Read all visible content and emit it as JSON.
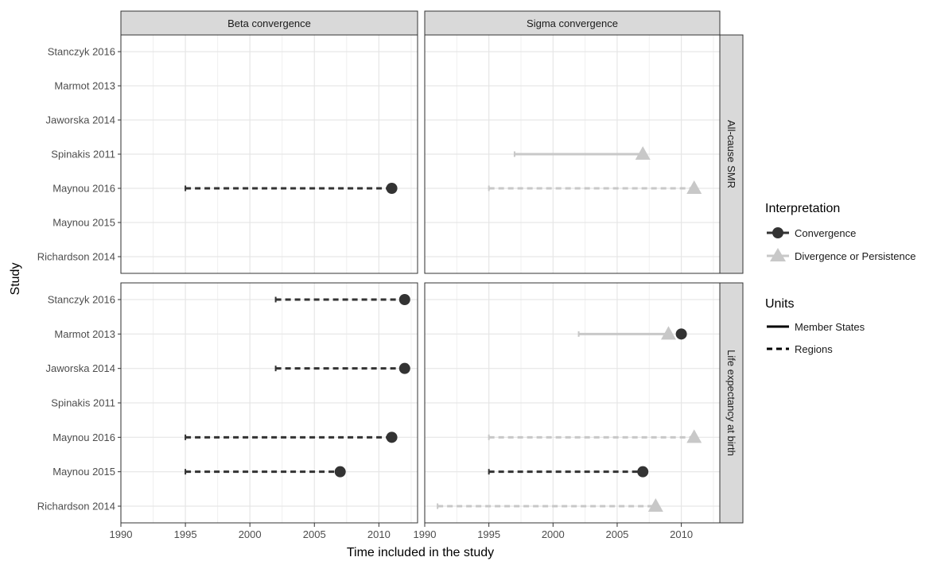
{
  "chart_data": {
    "type": "dumbbell",
    "xlabel": "Time included in the study",
    "ylabel": "Study",
    "xlim": [
      1990,
      2013
    ],
    "x_ticks": [
      1990,
      1995,
      2000,
      2005,
      2010
    ],
    "studies": [
      "Stanczyk 2016",
      "Marmot 2013",
      "Jaworska 2014",
      "Spinakis 2011",
      "Maynou 2016",
      "Maynou 2015",
      "Richardson 2014"
    ],
    "columns": [
      "Beta convergence",
      "Sigma convergence"
    ],
    "rows": [
      "All-cause SMR",
      "Life expectancy at birth"
    ],
    "grid": true,
    "legend_position": "right",
    "colors": {
      "Convergence": "#333333",
      "Divergence or Persistence": "#c8c8c8"
    },
    "legend": {
      "interpretation_title": "Interpretation",
      "interpretation": [
        {
          "label": "Convergence",
          "shape": "circle",
          "color": "#333333"
        },
        {
          "label": "Divergence or Persistence",
          "shape": "triangle",
          "color": "#c8c8c8"
        }
      ],
      "units_title": "Units",
      "units": [
        {
          "label": "Member States",
          "linetype": "solid"
        },
        {
          "label": "Regions",
          "linetype": "dashed"
        }
      ]
    },
    "segments": [
      {
        "column": "Beta convergence",
        "row": "All-cause SMR",
        "study": "Maynou 2016",
        "start": 1995,
        "end": 2011,
        "interpretation": "Convergence",
        "units": "Regions"
      },
      {
        "column": "Sigma convergence",
        "row": "All-cause SMR",
        "study": "Spinakis 2011",
        "start": 1997,
        "end": 2007,
        "interpretation": "Divergence or Persistence",
        "units": "Member States"
      },
      {
        "column": "Sigma convergence",
        "row": "All-cause SMR",
        "study": "Maynou 2016",
        "start": 1995,
        "end": 2011,
        "interpretation": "Divergence or Persistence",
        "units": "Regions"
      },
      {
        "column": "Beta convergence",
        "row": "Life expectancy at birth",
        "study": "Stanczyk 2016",
        "start": 2002,
        "end": 2012,
        "interpretation": "Convergence",
        "units": "Regions"
      },
      {
        "column": "Beta convergence",
        "row": "Life expectancy at birth",
        "study": "Jaworska 2014",
        "start": 2002,
        "end": 2012,
        "interpretation": "Convergence",
        "units": "Regions"
      },
      {
        "column": "Beta convergence",
        "row": "Life expectancy at birth",
        "study": "Maynou 2016",
        "start": 1995,
        "end": 2011,
        "interpretation": "Convergence",
        "units": "Regions"
      },
      {
        "column": "Beta convergence",
        "row": "Life expectancy at birth",
        "study": "Maynou 2015",
        "start": 1995,
        "end": 2007,
        "interpretation": "Convergence",
        "units": "Regions"
      },
      {
        "column": "Sigma convergence",
        "row": "Life expectancy at birth",
        "study": "Marmot 2013",
        "start": 2002,
        "end": 2009,
        "interpretation": "Divergence or Persistence",
        "units": "Member States"
      },
      {
        "column": "Sigma convergence",
        "row": "Life expectancy at birth",
        "study": "Marmot 2013",
        "start": 2002,
        "end": 2010,
        "interpretation": "Convergence",
        "units": "Member States",
        "point_only": true
      },
      {
        "column": "Sigma convergence",
        "row": "Life expectancy at birth",
        "study": "Maynou 2016",
        "start": 1995,
        "end": 2011,
        "interpretation": "Divergence or Persistence",
        "units": "Regions"
      },
      {
        "column": "Sigma convergence",
        "row": "Life expectancy at birth",
        "study": "Maynou 2015",
        "start": 1995,
        "end": 2007,
        "interpretation": "Convergence",
        "units": "Regions"
      },
      {
        "column": "Sigma convergence",
        "row": "Life expectancy at birth",
        "study": "Richardson 2014",
        "start": 1991,
        "end": 2008,
        "interpretation": "Divergence or Persistence",
        "units": "Regions"
      }
    ]
  }
}
